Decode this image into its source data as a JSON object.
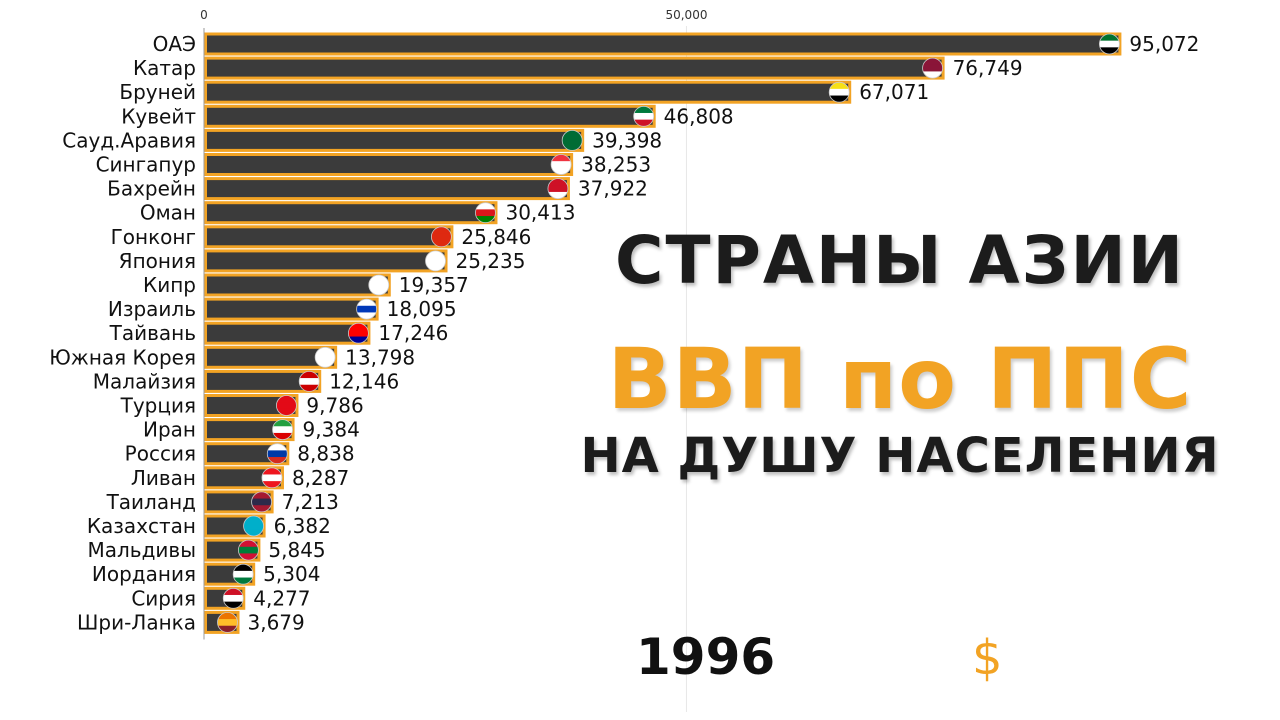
{
  "title": {
    "line1": "СТРАНЫ АЗИИ",
    "line2": "ВВП по ППС",
    "line3": "НА ДУШУ НАСЕЛЕНИЯ"
  },
  "year": "1996",
  "currency": "$",
  "colors": {
    "bar_fill": "#3b3b3b",
    "bar_border": "#f2a324",
    "accent": "#f2a324",
    "text": "#111111"
  },
  "chart_data": {
    "type": "bar",
    "orientation": "horizontal",
    "xlim": [
      0,
      97000
    ],
    "xticks": [
      0,
      50000
    ],
    "xtick_labels": [
      "0",
      "50,000"
    ],
    "grid": "vertical line at 50,000",
    "categories": [
      "ОАЭ",
      "Катар",
      "Бруней",
      "Кувейт",
      "Сауд.Аравия",
      "Сингапур",
      "Бахрейн",
      "Оман",
      "Гонконг",
      "Япония",
      "Кипр",
      "Израиль",
      "Тайвань",
      "Южная Корея",
      "Малайзия",
      "Турция",
      "Иран",
      "Россия",
      "Ливан",
      "Таиланд",
      "Казахстан",
      "Мальдивы",
      "Иордания",
      "Сирия",
      "Шри-Ланка"
    ],
    "values": [
      95072,
      76749,
      67071,
      46808,
      39398,
      38253,
      37922,
      30413,
      25846,
      25235,
      19357,
      18095,
      17246,
      13798,
      12146,
      9786,
      9384,
      8838,
      8287,
      7213,
      6382,
      5845,
      5304,
      4277,
      3679
    ],
    "value_labels": [
      "95,072",
      "76,749",
      "67,071",
      "46,808",
      "39,398",
      "38,253",
      "37,922",
      "30,413",
      "25,846",
      "25,235",
      "19,357",
      "18,095",
      "17,246",
      "13,798",
      "12,146",
      "9,786",
      "9,384",
      "8,838",
      "8,287",
      "7,213",
      "6,382",
      "5,845",
      "5,304",
      "4,277",
      "3,679"
    ],
    "flag_icons": [
      "flag-uae-icon",
      "flag-qatar-icon",
      "flag-brunei-icon",
      "flag-kuwait-icon",
      "flag-saudi-arabia-icon",
      "flag-singapore-icon",
      "flag-bahrain-icon",
      "flag-oman-icon",
      "flag-hong-kong-icon",
      "flag-japan-icon",
      "flag-cyprus-icon",
      "flag-israel-icon",
      "flag-taiwan-icon",
      "flag-south-korea-icon",
      "flag-malaysia-icon",
      "flag-turkey-icon",
      "flag-iran-icon",
      "flag-russia-icon",
      "flag-lebanon-icon",
      "flag-thailand-icon",
      "flag-kazakhstan-icon",
      "flag-maldives-icon",
      "flag-jordan-icon",
      "flag-syria-icon",
      "flag-sri-lanka-icon"
    ],
    "flag_colors": [
      [
        "#00732f",
        "#ffffff",
        "#000000"
      ],
      [
        "#8a1538",
        "#8a1538",
        "#ffffff"
      ],
      [
        "#f7e017",
        "#ffffff",
        "#000000"
      ],
      [
        "#007a3d",
        "#ffffff",
        "#ce1126"
      ],
      [
        "#006c35",
        "#006c35",
        "#006c35"
      ],
      [
        "#ef3340",
        "#ffffff",
        "#ffffff"
      ],
      [
        "#ce1126",
        "#ce1126",
        "#ffffff"
      ],
      [
        "#ffffff",
        "#db161b",
        "#008000"
      ],
      [
        "#de2910",
        "#de2910",
        "#de2910"
      ],
      [
        "#ffffff",
        "#ffffff",
        "#ffffff"
      ],
      [
        "#ffffff",
        "#ffffff",
        "#ffffff"
      ],
      [
        "#ffffff",
        "#0038b8",
        "#ffffff"
      ],
      [
        "#fe0000",
        "#fe0000",
        "#000095"
      ],
      [
        "#ffffff",
        "#ffffff",
        "#ffffff"
      ],
      [
        "#cc0001",
        "#ffffff",
        "#cc0001"
      ],
      [
        "#e30a17",
        "#e30a17",
        "#e30a17"
      ],
      [
        "#239f40",
        "#ffffff",
        "#da0000"
      ],
      [
        "#ffffff",
        "#0039a6",
        "#d52b1e"
      ],
      [
        "#ee161f",
        "#ffffff",
        "#ee161f"
      ],
      [
        "#a51931",
        "#2d2a4a",
        "#a51931"
      ],
      [
        "#00afca",
        "#00afca",
        "#00afca"
      ],
      [
        "#d21034",
        "#007e3a",
        "#d21034"
      ],
      [
        "#000000",
        "#ffffff",
        "#007a3d"
      ],
      [
        "#ce1126",
        "#ffffff",
        "#000000"
      ],
      [
        "#eb7400",
        "#ffbe29",
        "#8d2029"
      ]
    ]
  }
}
